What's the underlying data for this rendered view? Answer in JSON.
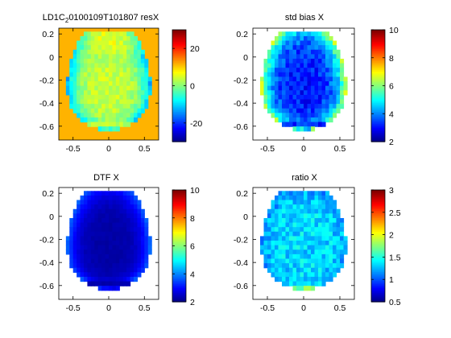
{
  "window": {
    "background": "#ffffff"
  },
  "chart_data": [
    {
      "type": "heatmap",
      "title": "LD1C",
      "title_sub": "2",
      "title_rest": "0100109T101807 resX",
      "xticks": [
        "-0.5",
        "0",
        "0.5"
      ],
      "xtick_values": [
        -0.5,
        0,
        0.5
      ],
      "yticks": [
        "0.2",
        "0",
        "-0.2",
        "-0.4",
        "-0.6"
      ],
      "ytick_values": [
        0.2,
        0,
        -0.2,
        -0.4,
        -0.6
      ],
      "xlim": [
        -0.7,
        0.7
      ],
      "ylim": [
        -0.72,
        0.25
      ],
      "colorbar": {
        "ticks": [
          "20",
          "0",
          "-20"
        ],
        "tick_values": [
          20,
          0,
          -20
        ],
        "range": [
          -30,
          30
        ]
      },
      "background_value": 12,
      "grid": {
        "rows": 24,
        "cols": 24,
        "base": 4,
        "top_value": 14,
        "edge_value": -12,
        "noise": 5,
        "bottom_value": -24
      },
      "grid_lines": false
    },
    {
      "type": "heatmap",
      "title": "std bias X",
      "xticks": [
        "-0.5",
        "0",
        "0.5"
      ],
      "xtick_values": [
        -0.5,
        0,
        0.5
      ],
      "yticks": [
        "0.2",
        "0",
        "-0.2",
        "-0.4",
        "-0.6"
      ],
      "ytick_values": [
        0.2,
        0,
        -0.2,
        -0.4,
        -0.6
      ],
      "xlim": [
        -0.7,
        0.7
      ],
      "ylim": [
        -0.72,
        0.25
      ],
      "colorbar": {
        "ticks": [
          "10",
          "8",
          "6",
          "4",
          "2"
        ],
        "tick_values": [
          10,
          8,
          6,
          4,
          2
        ],
        "range": [
          2,
          10
        ]
      },
      "background_value": null,
      "grid": {
        "rows": 24,
        "cols": 24,
        "base": 3.2,
        "top_value": 3.0,
        "edge_value": 6.5,
        "noise": 1.0,
        "bottom_value": 9.5
      },
      "grid_lines": false
    },
    {
      "type": "heatmap",
      "title": "DTF X",
      "xticks": [
        "-0.5",
        "0",
        "0.5"
      ],
      "xtick_values": [
        -0.5,
        0,
        0.5
      ],
      "yticks": [
        "0.2",
        "0",
        "-0.2",
        "-0.4",
        "-0.6"
      ],
      "ytick_values": [
        0.2,
        0,
        -0.2,
        -0.4,
        -0.6
      ],
      "xlim": [
        -0.7,
        0.7
      ],
      "ylim": [
        -0.72,
        0.25
      ],
      "colorbar": {
        "ticks": [
          "10",
          "8",
          "6",
          "4",
          "2"
        ],
        "tick_values": [
          10,
          8,
          6,
          4,
          2
        ],
        "range": [
          2,
          10
        ]
      },
      "background_value": null,
      "grid": {
        "rows": 24,
        "cols": 24,
        "base": 2.3,
        "top_value": 2.2,
        "edge_value": 3.8,
        "noise": 0.15,
        "bottom_value": 5.2
      },
      "grid_lines": false
    },
    {
      "type": "heatmap",
      "title": "ratio X",
      "xticks": [
        "-0.5",
        "0",
        "0.5"
      ],
      "xtick_values": [
        -0.5,
        0,
        0.5
      ],
      "yticks": [
        "0.2",
        "0",
        "-0.2",
        "-0.4",
        "-0.6"
      ],
      "ytick_values": [
        0.2,
        0,
        -0.2,
        -0.4,
        -0.6
      ],
      "xlim": [
        -0.7,
        0.7
      ],
      "ylim": [
        -0.72,
        0.25
      ],
      "colorbar": {
        "ticks": [
          "3",
          "2.5",
          "2",
          "1.5",
          "1",
          "0.5"
        ],
        "tick_values": [
          3,
          2.5,
          2,
          1.5,
          1,
          0.5
        ],
        "range": [
          0.5,
          3
        ]
      },
      "background_value": null,
      "grid": {
        "rows": 24,
        "cols": 24,
        "base": 1.35,
        "top_value": 1.3,
        "edge_value": 1.2,
        "noise": 0.35,
        "bottom_value": 2.4
      },
      "grid_lines": false
    }
  ]
}
